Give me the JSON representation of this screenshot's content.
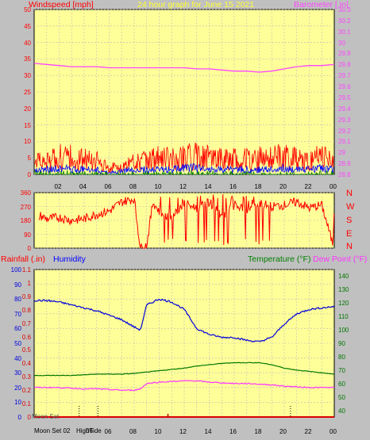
{
  "header": {
    "wind_label": "Windspeed [mph]",
    "title": "24 hour graph for June 15 2021",
    "baro_label": "Barometer [.in]"
  },
  "bottom_header": {
    "rain_label": "Rainfall (.in)",
    "humidity_label": "Humidity",
    "temp_label": "Temperature (°F)",
    "dew_label": "Dew Point (°F)"
  },
  "direction_labels": [
    "N",
    "W",
    "S",
    "E",
    "N"
  ],
  "x_tick_labels": [
    "02",
    "04",
    "06",
    "08",
    "10",
    "12",
    "14",
    "16",
    "18",
    "20",
    "22",
    "00"
  ],
  "astro": {
    "moon_set_top": "Moon Set",
    "moon_set_bottom": "Moon Set 02",
    "high_tide": "HighTide",
    "tide_num": "06"
  },
  "colors": {
    "plot_bg": "#ffff99",
    "wind": "#ff0000",
    "gust": "#0000ff",
    "wind_min": "#008000",
    "barometer": "#ff44ff",
    "direction": "#ff0000",
    "humidity": "#0000dd",
    "temperature": "#007700",
    "dew_point": "#ff33ff",
    "rainfall": "#dd0000"
  },
  "chart_data": [
    {
      "type": "line",
      "title": "24 hour graph for June 15 2021",
      "ylabel": "Windspeed [mph]",
      "y2label": "Barometer [.in]",
      "ylim": [
        0,
        50
      ],
      "y_ticks": [
        0,
        5,
        10,
        15,
        20,
        25,
        30,
        35,
        40,
        45,
        50
      ],
      "y2lim": [
        28.8,
        30.3
      ],
      "y2_ticks": [
        "28.8",
        "28.9",
        "29",
        "29.1",
        "29.2",
        "29.3",
        "29.4",
        "29.5",
        "29.6",
        "29.7",
        "29.8",
        "29.9",
        "30",
        "30.1",
        "30.2",
        "30.3"
      ],
      "xlim_hours": [
        0,
        24
      ],
      "grid": true,
      "series": [
        {
          "name": "Barometer",
          "axis": "right",
          "x": [
            0,
            1,
            2,
            3,
            4,
            5,
            6,
            7,
            8,
            9,
            10,
            11,
            12,
            13,
            14,
            15,
            16,
            17,
            18,
            19,
            20,
            21,
            22,
            23,
            24
          ],
          "values": [
            29.81,
            29.8,
            29.79,
            29.78,
            29.78,
            29.78,
            29.77,
            29.77,
            29.77,
            29.77,
            29.77,
            29.77,
            29.77,
            29.76,
            29.76,
            29.75,
            29.74,
            29.74,
            29.73,
            29.74,
            29.76,
            29.78,
            29.79,
            29.79,
            29.8
          ]
        },
        {
          "name": "Windspeed",
          "axis": "left",
          "x": [
            0,
            1,
            2,
            3,
            4,
            5,
            6,
            7,
            8,
            9,
            10,
            11,
            12,
            13,
            14,
            15,
            16,
            17,
            18,
            19,
            20,
            21,
            22,
            23,
            24
          ],
          "values": [
            3.5,
            4,
            5.5,
            5,
            4.5,
            4,
            2,
            2.5,
            3.5,
            4,
            5,
            4.5,
            5,
            5.5,
            5,
            4.5,
            4.5,
            4.5,
            5,
            5,
            5.5,
            4.5,
            4.5,
            5,
            4.5
          ]
        },
        {
          "name": "Gust",
          "axis": "left",
          "x": [
            0,
            1,
            2,
            3,
            4,
            5,
            6,
            7,
            8,
            9,
            10,
            11,
            12,
            13,
            14,
            15,
            16,
            17,
            18,
            19,
            20,
            21,
            22,
            23,
            24
          ],
          "values": [
            1.5,
            1.5,
            2,
            1.5,
            1.5,
            1.5,
            0.5,
            1,
            1.5,
            1.5,
            1.5,
            1.5,
            2,
            2,
            1.5,
            1.5,
            1.5,
            1.5,
            1.5,
            1.5,
            2,
            1.5,
            1.5,
            2,
            1.5
          ]
        }
      ]
    },
    {
      "type": "line",
      "ylabel": "Wind direction",
      "ylim": [
        0,
        360
      ],
      "y_ticks": [
        0,
        90,
        180,
        270,
        360
      ],
      "xlim_hours": [
        0,
        24
      ],
      "series": [
        {
          "name": "Direction",
          "x": [
            0,
            0.5,
            1,
            2,
            3,
            4,
            5,
            6,
            7,
            8,
            8.5,
            9,
            9.5,
            10,
            11,
            12,
            13,
            14,
            15,
            16,
            17,
            18,
            19,
            20,
            21,
            22,
            23,
            23.9,
            24
          ],
          "values": [
            180,
            210,
            190,
            200,
            180,
            190,
            220,
            240,
            300,
            320,
            0,
            20,
            300,
            240,
            200,
            290,
            260,
            300,
            200,
            280,
            240,
            290,
            270,
            280,
            300,
            260,
            280,
            20,
            300
          ]
        }
      ]
    },
    {
      "type": "line",
      "y_ticks_humidity": [
        0,
        10,
        20,
        30,
        40,
        50,
        60,
        70,
        80,
        90,
        100
      ],
      "ylim_humidity": [
        0,
        100
      ],
      "y_ticks_rain": [
        "0",
        "0.1",
        "0.2",
        "0.3",
        "0.4",
        "0.5",
        "0.6",
        "0.7",
        "0.8",
        "0.9",
        "1",
        "1.1"
      ],
      "ylim_rain": [
        0,
        1.1
      ],
      "y_ticks_temp": [
        40,
        50,
        60,
        70,
        80,
        90,
        100,
        110,
        120,
        130,
        140
      ],
      "ylim_temp": [
        35,
        145
      ],
      "xlim_hours": [
        0,
        24
      ],
      "series": [
        {
          "name": "Humidity",
          "axis": "humidity",
          "x": [
            0,
            1,
            2,
            3,
            4,
            5,
            6,
            7,
            8,
            8.5,
            9,
            10,
            11,
            12,
            13,
            14,
            15,
            16,
            17,
            18,
            19,
            20,
            21,
            22,
            23,
            24
          ],
          "values": [
            79,
            79,
            78,
            76,
            74,
            72,
            69,
            66,
            61,
            59,
            76,
            80,
            78,
            73,
            60,
            56,
            54,
            54,
            52,
            51,
            54,
            63,
            70,
            73,
            74,
            75
          ]
        },
        {
          "name": "Temperature",
          "axis": "temp",
          "x": [
            0,
            1,
            2,
            3,
            4,
            5,
            6,
            7,
            8,
            9,
            10,
            11,
            12,
            13,
            14,
            15,
            16,
            17,
            18,
            19,
            20,
            21,
            22,
            23,
            24
          ],
          "values": [
            66,
            66,
            66,
            66,
            66.5,
            67,
            67,
            67,
            67.5,
            68.5,
            69.5,
            70.5,
            71.5,
            73,
            74,
            75,
            75.5,
            75.5,
            75.5,
            74,
            71.5,
            70,
            69,
            68,
            67
          ]
        },
        {
          "name": "Dew Point",
          "axis": "temp",
          "x": [
            0,
            1,
            2,
            3,
            4,
            5,
            6,
            7,
            8,
            8.5,
            9,
            10,
            11,
            12,
            13,
            14,
            15,
            16,
            17,
            18,
            19,
            20,
            21,
            22,
            23,
            24
          ],
          "values": [
            57,
            57,
            57,
            56.5,
            56,
            56,
            55.5,
            55,
            55,
            56,
            60,
            61,
            61.5,
            62,
            62,
            61,
            60.5,
            60,
            60,
            59.5,
            59,
            58,
            57.5,
            57,
            57,
            57
          ]
        },
        {
          "name": "Rainfall",
          "axis": "rain",
          "x": [
            0,
            24
          ],
          "values": [
            0,
            0
          ]
        }
      ]
    }
  ]
}
